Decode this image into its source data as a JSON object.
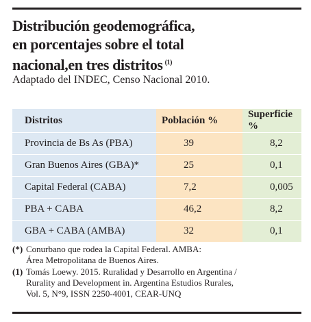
{
  "header": {
    "title_lines": [
      "Distribución geodemográfica,",
      "en porcentajes sobre el total",
      "nacional,en tres distritos"
    ],
    "title_ref": "(1)",
    "subtitle": "Adaptado del INDEC, Censo Nacional 2010."
  },
  "table": {
    "columns": [
      "Distritos",
      "Población %",
      "Superficie %"
    ],
    "rows": [
      [
        "Provincia de Bs As (PBA)",
        "39",
        "8,2"
      ],
      [
        "Gran Buenos Aires (GBA)*",
        "25",
        "0,1"
      ],
      [
        "Capital Federal (CABA)",
        "7,2",
        "0,005"
      ],
      [
        "PBA + CABA",
        "46,2",
        "8,2"
      ],
      [
        "GBA + CABA (AMBA)",
        "32",
        "0,1"
      ]
    ]
  },
  "footnotes": [
    {
      "marker": "(*)",
      "lines": [
        "Conurbano que rodea la Capital Federal. AMBA:",
        "Área Metropolitana de Buenos Aires."
      ]
    },
    {
      "marker": "(1)",
      "lines": [
        "Tomás Loewy. 2015. Ruralidad y Desarrollo en Argentina /",
        "Rurality and Development in. Argentina Estudios Rurales,",
        "Vol. 5, N°9, ISSN 2250-4001, CEAR-UNQ"
      ]
    }
  ]
}
